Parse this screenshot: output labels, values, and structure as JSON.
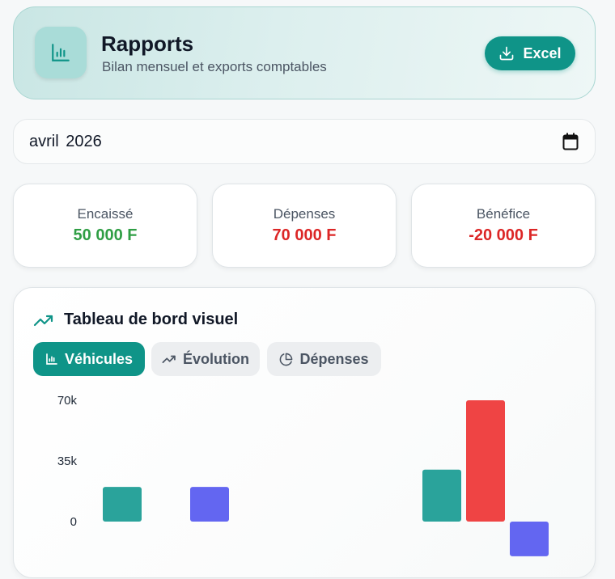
{
  "header": {
    "title": "Rapports",
    "subtitle": "Bilan mensuel et exports comptables",
    "excel_label": "Excel",
    "icon": "bar-chart-icon"
  },
  "date_picker": {
    "value": "avril 2026",
    "icon": "calendar-icon"
  },
  "stats": [
    {
      "label": "Encaissé",
      "value": "50 000 F",
      "color": "#2f9e44"
    },
    {
      "label": "Dépenses",
      "value": "70 000 F",
      "color": "#dc2626"
    },
    {
      "label": "Bénéfice",
      "value": "-20 000 F",
      "color": "#dc2626"
    }
  ],
  "dashboard": {
    "title": "Tableau de bord visuel",
    "title_icon": "trending-up-icon",
    "tabs": [
      {
        "label": "Véhicules",
        "icon": "bar-chart-icon",
        "active": true
      },
      {
        "label": "Évolution",
        "icon": "trending-up-icon",
        "active": false
      },
      {
        "label": "Dépenses",
        "icon": "pie-chart-icon",
        "active": false
      }
    ]
  },
  "colors": {
    "accent": "#0f9488",
    "income": "#2aa39b",
    "expense": "#ef4444",
    "profit": "#6366f1"
  },
  "chart_data": {
    "type": "bar",
    "y_tick_labels": [
      "70k",
      "35k",
      "0"
    ],
    "ylim": [
      -20000,
      70000
    ],
    "series": [
      {
        "color": "#2aa39b",
        "values": [
          20000,
          null,
          30000
        ]
      },
      {
        "color": "#ef4444",
        "values": [
          null,
          null,
          70000
        ]
      },
      {
        "color": "#6366f1",
        "values": [
          20000,
          null,
          -20000
        ]
      }
    ],
    "category_count": 3
  }
}
